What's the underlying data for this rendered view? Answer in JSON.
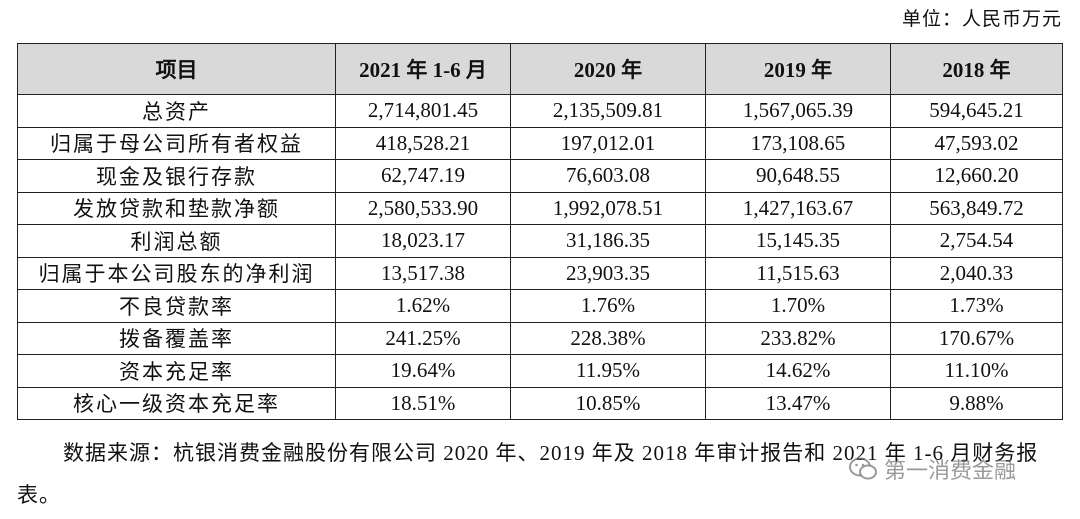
{
  "unit": "单位：人民币万元",
  "table": {
    "header": [
      "项目",
      "2021 年 1-6 月",
      "2020 年",
      "2019 年",
      "2018 年"
    ],
    "rows": [
      [
        "总资产",
        "2,714,801.45",
        "2,135,509.81",
        "1,567,065.39",
        "594,645.21"
      ],
      [
        "归属于母公司所有者权益",
        "418,528.21",
        "197,012.01",
        "173,108.65",
        "47,593.02"
      ],
      [
        "现金及银行存款",
        "62,747.19",
        "76,603.08",
        "90,648.55",
        "12,660.20"
      ],
      [
        "发放贷款和垫款净额",
        "2,580,533.90",
        "1,992,078.51",
        "1,427,163.67",
        "563,849.72"
      ],
      [
        "利润总额",
        "18,023.17",
        "31,186.35",
        "15,145.35",
        "2,754.54"
      ],
      [
        "归属于本公司股东的净利润",
        "13,517.38",
        "23,903.35",
        "11,515.63",
        "2,040.33"
      ],
      [
        "不良贷款率",
        "1.62%",
        "1.76%",
        "1.70%",
        "1.73%"
      ],
      [
        "拨备覆盖率",
        "241.25%",
        "228.38%",
        "233.82%",
        "170.67%"
      ],
      [
        "资本充足率",
        "19.64%",
        "11.95%",
        "14.62%",
        "11.10%"
      ],
      [
        "核心一级资本充足率",
        "18.51%",
        "10.85%",
        "13.47%",
        "9.88%"
      ]
    ]
  },
  "note": "数据来源：杭银消费金融股份有限公司 2020 年、2019 年及 2018 年审计报告和 2021 年 1-6 月财务报表。",
  "watermark": "第一消费金融"
}
